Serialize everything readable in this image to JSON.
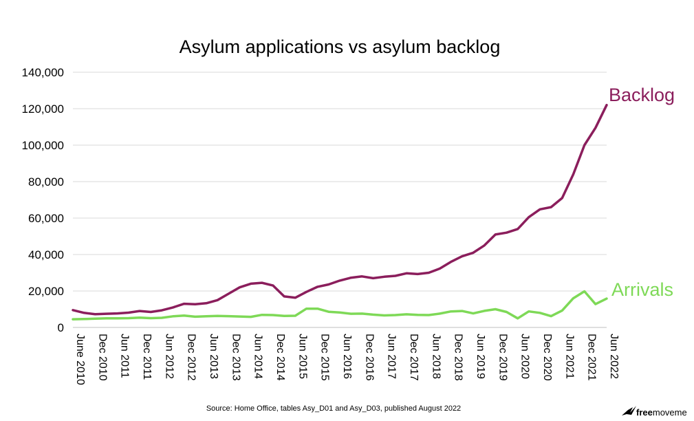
{
  "chart_data": {
    "type": "line",
    "title": "Asylum applications vs asylum backlog",
    "xlabel": "",
    "ylabel": "",
    "ylim": [
      0,
      140000
    ],
    "yticks": [
      "0",
      "20,000",
      "40,000",
      "60,000",
      "80,000",
      "100,000",
      "120,000",
      "140,000"
    ],
    "yticks_values": [
      0,
      20000,
      40000,
      60000,
      80000,
      100000,
      120000,
      140000
    ],
    "x_tick_labels": [
      "June 2010",
      "Dec 2010",
      "Jun 2011",
      "Dec 2011",
      "Jun 2012",
      "Dec 2012",
      "Jun 2013",
      "Dec 2013",
      "Jun 2014",
      "Dec 2014",
      "Jun 2015",
      "Dec 2015",
      "Jun 2016",
      "Dec 2016",
      "Jun 2017",
      "Dec 2017",
      "Jun 2018",
      "Dec 2018",
      "Jun 2019",
      "Dec 2019",
      "Jun 2020",
      "Dec 2020",
      "Jun 2021",
      "Dec 2021",
      "Jun 2022"
    ],
    "x_quarters": [
      "2010 Q2",
      "2010 Q3",
      "2010 Q4",
      "2011 Q1",
      "2011 Q2",
      "2011 Q3",
      "2011 Q4",
      "2012 Q1",
      "2012 Q2",
      "2012 Q3",
      "2012 Q4",
      "2013 Q1",
      "2013 Q2",
      "2013 Q3",
      "2013 Q4",
      "2014 Q1",
      "2014 Q2",
      "2014 Q3",
      "2014 Q4",
      "2015 Q1",
      "2015 Q2",
      "2015 Q3",
      "2015 Q4",
      "2016 Q1",
      "2016 Q2",
      "2016 Q3",
      "2016 Q4",
      "2017 Q1",
      "2017 Q2",
      "2017 Q3",
      "2017 Q4",
      "2018 Q1",
      "2018 Q2",
      "2018 Q3",
      "2018 Q4",
      "2019 Q1",
      "2019 Q2",
      "2019 Q3",
      "2019 Q4",
      "2020 Q1",
      "2020 Q2",
      "2020 Q3",
      "2020 Q4",
      "2021 Q1",
      "2021 Q2",
      "2021 Q3",
      "2021 Q4",
      "2022 Q1",
      "2022 Q2"
    ],
    "grid": true,
    "legend": "inline labels at line ends",
    "series": [
      {
        "name": "Backlog",
        "color": "#8b1e5c",
        "values": [
          9500,
          8000,
          7300,
          7500,
          7700,
          8100,
          9000,
          8500,
          9400,
          11000,
          13000,
          12700,
          13300,
          15000,
          18500,
          22000,
          24000,
          24500,
          23000,
          17000,
          16300,
          19500,
          22300,
          23600,
          25700,
          27300,
          28000,
          27000,
          27800,
          28300,
          29700,
          29300,
          30000,
          32300,
          36000,
          39000,
          41000,
          45000,
          51000,
          52000,
          54000,
          60500,
          64800,
          66000,
          71000,
          84000,
          100000,
          109500,
          122000
        ]
      },
      {
        "name": "Arrivals",
        "color": "#7ed957",
        "values": [
          4500,
          4600,
          4800,
          5000,
          5000,
          5100,
          5400,
          5100,
          5300,
          6100,
          6500,
          5900,
          6100,
          6300,
          6200,
          6000,
          5800,
          6900,
          6800,
          6300,
          6400,
          10300,
          10300,
          8600,
          8200,
          7500,
          7600,
          7000,
          6600,
          6800,
          7200,
          6900,
          6800,
          7600,
          8800,
          9000,
          7700,
          9100,
          10000,
          8500,
          5000,
          8800,
          8000,
          6200,
          9300,
          16000,
          19800,
          12800,
          15800
        ]
      }
    ]
  },
  "footer": {
    "source": "Source: Home Office, tables Asy_D01 and Asy_D03, published August 2022",
    "brand_bold": "free",
    "brand_rest": "moveme",
    "brand_color": "#000000"
  }
}
